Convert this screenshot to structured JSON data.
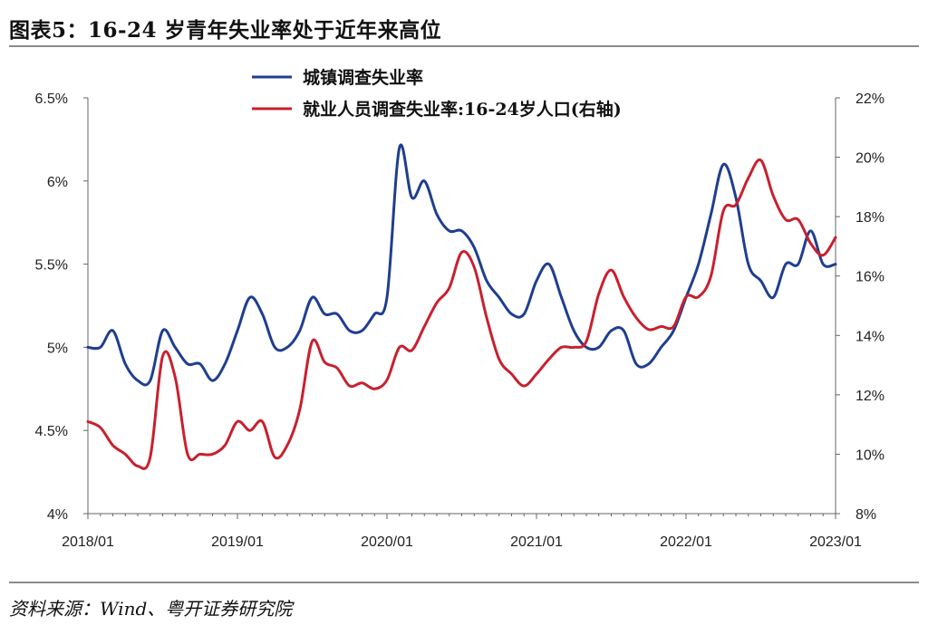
{
  "header": {
    "title": "图表5：16-24 岁青年失业率处于近年来高位"
  },
  "footer": {
    "source": "资料来源：Wind、粤开证券研究院"
  },
  "chart_data": {
    "type": "line",
    "x_tick_labels": [
      "2018/01",
      "2019/01",
      "2020/01",
      "2021/01",
      "2022/01",
      "2023/01"
    ],
    "y_left": {
      "ticks": [
        "4%",
        "4.5%",
        "5%",
        "5.5%",
        "6%",
        "6.5%"
      ],
      "range": [
        4,
        6.5
      ],
      "unit": "%"
    },
    "y_right": {
      "ticks": [
        "8%",
        "10%",
        "12%",
        "14%",
        "16%",
        "18%",
        "20%",
        "22%"
      ],
      "range": [
        8,
        22
      ],
      "unit": "%"
    },
    "legend_position": "top-center",
    "grid": false,
    "series": [
      {
        "name": "城镇调查失业率",
        "axis": "left",
        "color": "#1f3e8f",
        "x": [
          "2018/01",
          "2018/02",
          "2018/03",
          "2018/04",
          "2018/05",
          "2018/06",
          "2018/07",
          "2018/08",
          "2018/09",
          "2018/10",
          "2018/11",
          "2018/12",
          "2019/01",
          "2019/02",
          "2019/03",
          "2019/04",
          "2019/05",
          "2019/06",
          "2019/07",
          "2019/08",
          "2019/09",
          "2019/10",
          "2019/11",
          "2019/12",
          "2020/01",
          "2020/02",
          "2020/03",
          "2020/04",
          "2020/05",
          "2020/06",
          "2020/07",
          "2020/08",
          "2020/09",
          "2020/10",
          "2020/11",
          "2020/12",
          "2021/01",
          "2021/02",
          "2021/03",
          "2021/04",
          "2021/05",
          "2021/06",
          "2021/07",
          "2021/08",
          "2021/09",
          "2021/10",
          "2021/11",
          "2021/12",
          "2022/01",
          "2022/02",
          "2022/03",
          "2022/04",
          "2022/05",
          "2022/06",
          "2022/07",
          "2022/08",
          "2022/09",
          "2022/10",
          "2022/11",
          "2022/12",
          "2023/01"
        ],
        "values": [
          5.0,
          5.0,
          5.1,
          4.9,
          4.8,
          4.8,
          5.1,
          5.0,
          4.9,
          4.9,
          4.8,
          4.9,
          5.1,
          5.3,
          5.2,
          5.0,
          5.0,
          5.1,
          5.3,
          5.2,
          5.2,
          5.1,
          5.1,
          5.2,
          5.3,
          6.2,
          5.9,
          6.0,
          5.8,
          5.7,
          5.7,
          5.6,
          5.4,
          5.3,
          5.2,
          5.2,
          5.4,
          5.5,
          5.3,
          5.1,
          5.0,
          5.0,
          5.1,
          5.1,
          4.9,
          4.9,
          5.0,
          5.1,
          5.3,
          5.5,
          5.8,
          6.1,
          5.9,
          5.5,
          5.4,
          5.3,
          5.5,
          5.5,
          5.7,
          5.5,
          5.5
        ]
      },
      {
        "name": "就业人员调查失业率:16-24岁人口(右轴)",
        "axis": "right",
        "color": "#c8202e",
        "x": [
          "2018/01",
          "2018/02",
          "2018/03",
          "2018/04",
          "2018/05",
          "2018/06",
          "2018/07",
          "2018/08",
          "2018/09",
          "2018/10",
          "2018/11",
          "2018/12",
          "2019/01",
          "2019/02",
          "2019/03",
          "2019/04",
          "2019/05",
          "2019/06",
          "2019/07",
          "2019/08",
          "2019/09",
          "2019/10",
          "2019/11",
          "2019/12",
          "2020/01",
          "2020/02",
          "2020/03",
          "2020/04",
          "2020/05",
          "2020/06",
          "2020/07",
          "2020/08",
          "2020/09",
          "2020/10",
          "2020/11",
          "2020/12",
          "2021/01",
          "2021/02",
          "2021/03",
          "2021/04",
          "2021/05",
          "2021/06",
          "2021/07",
          "2021/08",
          "2021/09",
          "2021/10",
          "2021/11",
          "2021/12",
          "2022/01",
          "2022/02",
          "2022/03",
          "2022/04",
          "2022/05",
          "2022/06",
          "2022/07",
          "2022/08",
          "2022/09",
          "2022/10",
          "2022/11",
          "2022/12",
          "2023/01"
        ],
        "values": [
          11.1,
          10.9,
          10.3,
          10.0,
          9.6,
          9.9,
          13.3,
          12.6,
          10.0,
          10.0,
          10.0,
          10.3,
          11.1,
          10.8,
          11.1,
          9.9,
          10.3,
          11.5,
          13.8,
          13.1,
          12.9,
          12.3,
          12.4,
          12.2,
          12.5,
          13.6,
          13.5,
          14.3,
          15.1,
          15.6,
          16.8,
          16.3,
          14.6,
          13.2,
          12.7,
          12.3,
          12.7,
          13.2,
          13.6,
          13.6,
          13.8,
          15.4,
          16.2,
          15.3,
          14.6,
          14.2,
          14.3,
          14.3,
          15.3,
          15.3,
          16.0,
          18.2,
          18.4,
          19.3,
          19.9,
          18.7,
          17.9,
          17.9,
          17.1,
          16.7,
          17.3
        ]
      }
    ]
  }
}
